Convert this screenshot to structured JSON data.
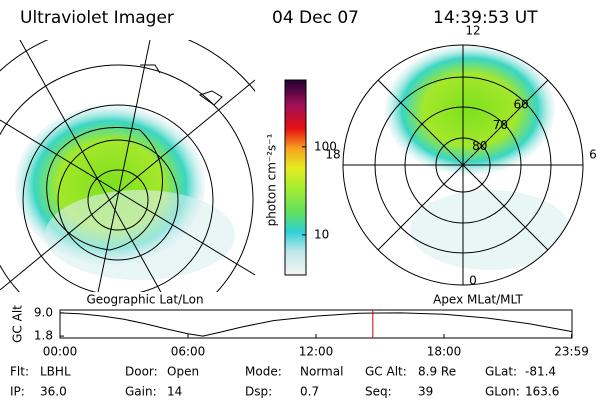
{
  "header": {
    "title": "Ultraviolet Imager",
    "date": "04 Dec 07",
    "time": "14:39:53 UT"
  },
  "left_panel": {
    "caption": "Geographic Lat/Lon"
  },
  "right_panel": {
    "caption": "Apex MLat/MLT",
    "mlt_labels": [
      {
        "label": "12",
        "angle": 0
      },
      {
        "label": "6",
        "angle": 90
      },
      {
        "label": "0",
        "angle": 180
      },
      {
        "label": "18",
        "angle": 270
      }
    ],
    "lat_labels": [
      80,
      70,
      60
    ]
  },
  "colorbar": {
    "label": "photon cm⁻²s⁻¹",
    "log": true,
    "ylim": [
      3.5,
      575
    ],
    "yticks": [
      10,
      100
    ]
  },
  "altitude_plot": {
    "ylabel": "GC Alt",
    "xlim": [
      0,
      24
    ],
    "ylim": [
      1.2,
      9.9
    ],
    "yticks": [
      {
        "value": 9,
        "label": "9.0"
      },
      1.8
    ],
    "xticks": [
      {
        "value": 0,
        "label": "00:00"
      },
      {
        "value": 6,
        "label": "06:00"
      },
      {
        "value": 12,
        "label": "12:00"
      },
      {
        "value": 18,
        "label": "18:00"
      },
      {
        "value": 23.98,
        "label": "23:59"
      }
    ],
    "x": [
      0,
      1,
      2,
      3,
      4,
      5,
      6,
      6.7,
      7.5,
      8.5,
      10,
      12,
      14,
      16,
      18,
      20,
      22,
      24
    ],
    "values": [
      9.0,
      8.7,
      8.0,
      7.0,
      5.6,
      4.0,
      2.5,
      1.8,
      3.0,
      4.6,
      6.6,
      8.0,
      8.9,
      9.0,
      8.6,
      7.4,
      5.6,
      3.2
    ],
    "marker": 14.665,
    "marker_color": "#cc0000"
  },
  "footer": [
    [
      {
        "label": "Flt:",
        "value": "LBHL"
      },
      {
        "label": "Door:",
        "value": "Open"
      },
      {
        "label": "Mode:",
        "value": "Normal"
      },
      {
        "label": "GC Alt:",
        "value": "8.9 Re"
      },
      {
        "label": "GLat:",
        "value": "-81.4"
      }
    ],
    [
      {
        "label": "IP:",
        "value": "36.0"
      },
      {
        "label": "Gain:",
        "value": "14"
      },
      {
        "label": "Dsp:",
        "value": "0.7"
      },
      {
        "label": "Seq:",
        "value": "39"
      },
      {
        "label": "GLon:",
        "value": "163.6"
      }
    ]
  ]
}
